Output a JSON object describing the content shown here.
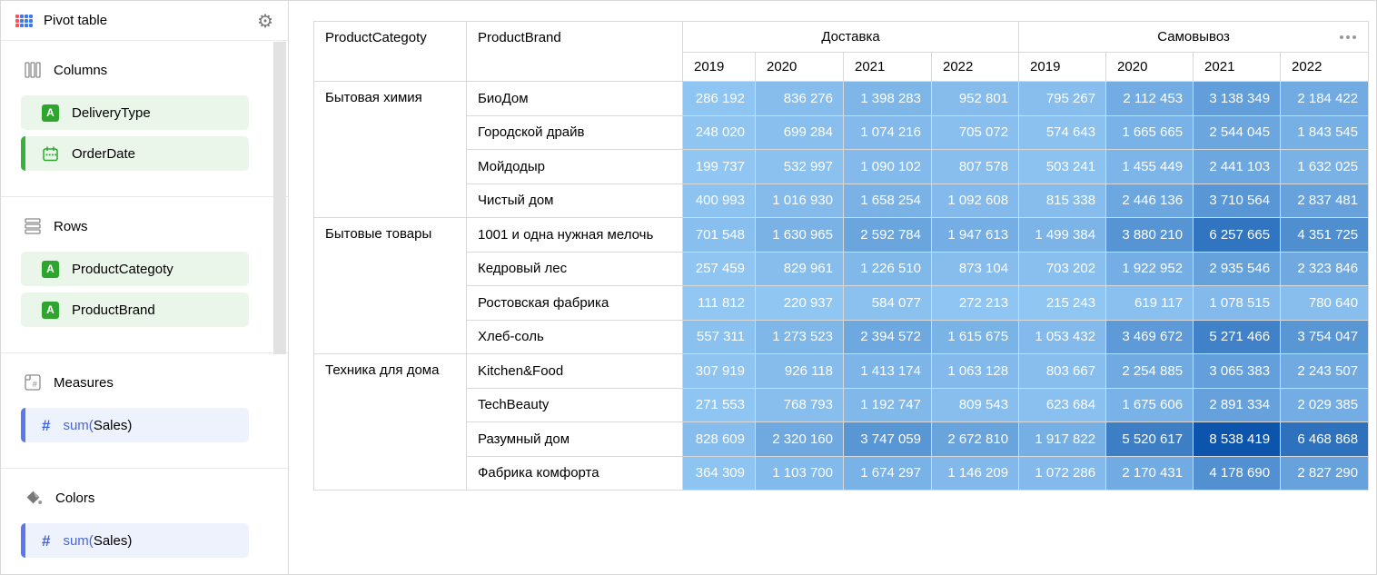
{
  "app": {
    "title": "Pivot table",
    "icons": {
      "logo": "pivot-table-icon",
      "settings": "gear-icon",
      "table_menu": "ellipsis-icon"
    }
  },
  "sidebar": {
    "sections": [
      {
        "label": "Columns",
        "icon": "columns-icon",
        "items": [
          {
            "label": "DeliveryType",
            "field_type": "text",
            "icon": "text-field-icon",
            "active": false
          },
          {
            "label": "OrderDate",
            "field_type": "date",
            "icon": "date-field-icon",
            "active": true
          }
        ]
      },
      {
        "label": "Rows",
        "icon": "rows-icon",
        "items": [
          {
            "label": "ProductCategoty",
            "field_type": "text",
            "icon": "text-field-icon",
            "active": false
          },
          {
            "label": "ProductBrand",
            "field_type": "text",
            "icon": "text-field-icon",
            "active": false
          }
        ]
      },
      {
        "label": "Measures",
        "icon": "measures-icon",
        "items": [
          {
            "label": "sum(Sales)",
            "prefix": "sum(",
            "name": "Sales)",
            "field_type": "measure",
            "icon": "hash-icon",
            "active": true
          }
        ]
      },
      {
        "label": "Colors",
        "icon": "colors-icon",
        "items": [
          {
            "label": "sum(Sales)",
            "prefix": "sum(",
            "name": "Sales)",
            "field_type": "measure",
            "icon": "hash-icon",
            "active": true
          }
        ]
      }
    ]
  },
  "pivot": {
    "corner_headers": [
      "ProductCategoty",
      "ProductBrand"
    ],
    "column_groups": [
      {
        "label": "Доставка",
        "columns": [
          "2019",
          "2020",
          "2021",
          "2022"
        ]
      },
      {
        "label": "Самовывоз",
        "columns": [
          "2019",
          "2020",
          "2021",
          "2022"
        ]
      }
    ],
    "row_groups": [
      {
        "category": "Бытовая химия",
        "rows": [
          {
            "brand": "БиоДом",
            "values": [
              286192,
              836276,
              1398283,
              952801,
              795267,
              2112453,
              3138349,
              2184422
            ]
          },
          {
            "brand": "Городской драйв",
            "values": [
              248020,
              699284,
              1074216,
              705072,
              574643,
              1665665,
              2544045,
              1843545
            ]
          },
          {
            "brand": "Мойдодыр",
            "values": [
              199737,
              532997,
              1090102,
              807578,
              503241,
              1455449,
              2441103,
              1632025
            ]
          },
          {
            "brand": "Чистый дом",
            "values": [
              400993,
              1016930,
              1658254,
              1092608,
              815338,
              2446136,
              3710564,
              2837481
            ]
          }
        ]
      },
      {
        "category": "Бытовые товары",
        "rows": [
          {
            "brand": "1001 и одна нужная мелочь",
            "values": [
              701548,
              1630965,
              2592784,
              1947613,
              1499384,
              3880210,
              6257665,
              4351725
            ]
          },
          {
            "brand": "Кедровый лес",
            "values": [
              257459,
              829961,
              1226510,
              873104,
              703202,
              1922952,
              2935546,
              2323846
            ]
          },
          {
            "brand": "Ростовская фабрика",
            "values": [
              111812,
              220937,
              584077,
              272213,
              215243,
              619117,
              1078515,
              780640
            ]
          },
          {
            "brand": "Хлеб-соль",
            "values": [
              557311,
              1273523,
              2394572,
              1615675,
              1053432,
              3469672,
              5271466,
              3754047
            ]
          }
        ]
      },
      {
        "category": "Техника для дома",
        "rows": [
          {
            "brand": "Kitchen&Food",
            "values": [
              307919,
              926118,
              1413174,
              1063128,
              803667,
              2254885,
              3065383,
              2243507
            ]
          },
          {
            "brand": "TechBeauty",
            "values": [
              271553,
              768793,
              1192747,
              809543,
              623684,
              1675606,
              2891334,
              2029385
            ]
          },
          {
            "brand": "Разумный дом",
            "values": [
              828609,
              2320160,
              3747059,
              2672810,
              1917822,
              5520617,
              8538419,
              6468868
            ]
          },
          {
            "brand": "Фабрика комфорта",
            "values": [
              364309,
              1103700,
              1674297,
              1146209,
              1072286,
              2170431,
              4178690,
              2827290
            ]
          }
        ]
      }
    ],
    "color_scale": {
      "from": "#92C7F3",
      "to": "#0D55AC"
    },
    "number_format": {
      "thousands_separator": " "
    }
  }
}
